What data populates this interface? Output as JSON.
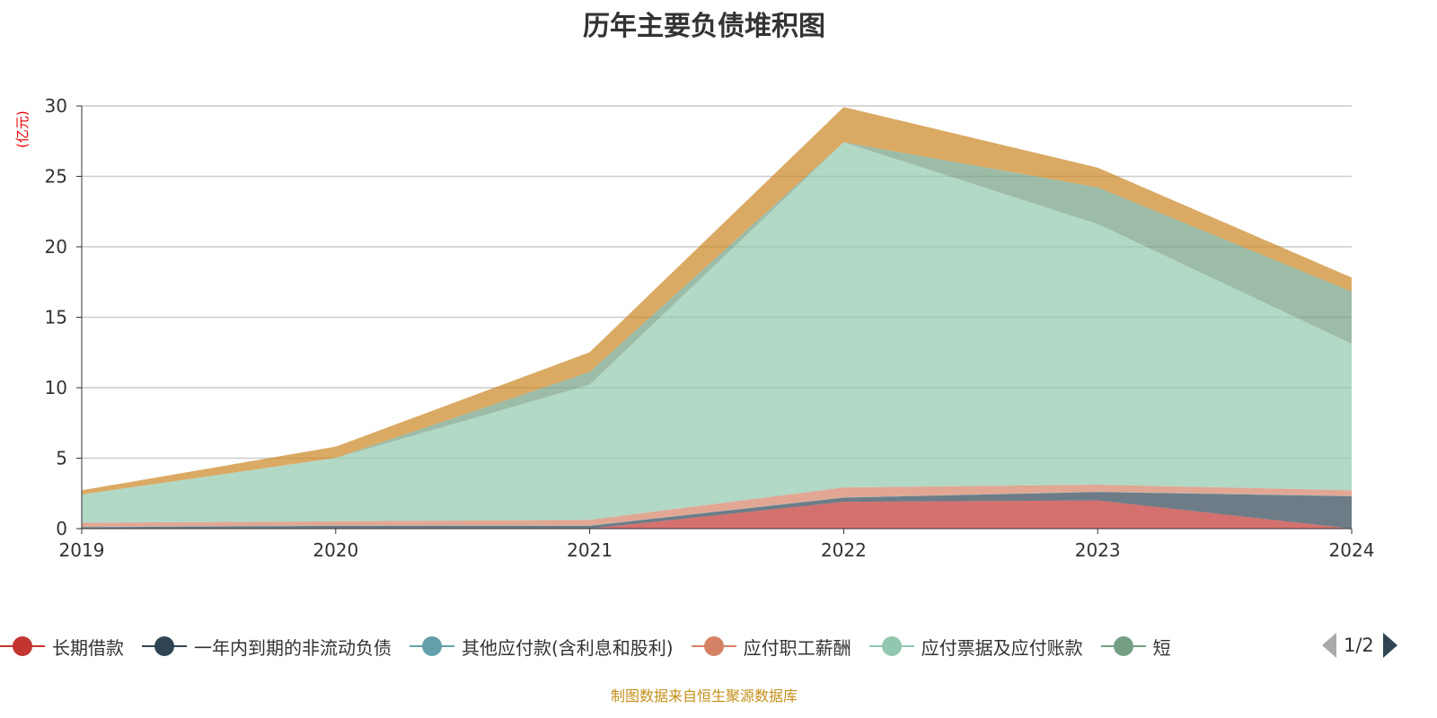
{
  "chart_data": {
    "type": "area",
    "stacked": true,
    "title": "历年主要负债堆积图",
    "ylabel": "(亿元)",
    "categories": [
      "2019",
      "2020",
      "2021",
      "2022",
      "2023",
      "2024"
    ],
    "ylim": [
      0,
      30
    ],
    "yticks": [
      0,
      5,
      10,
      15,
      20,
      25,
      30
    ],
    "grid": true,
    "legend_position": "bottom",
    "series": [
      {
        "name": "长期借款",
        "color": "#c23531",
        "values": [
          0,
          0,
          0,
          1.9,
          2.0,
          0
        ]
      },
      {
        "name": "一年内到期的非流动负债",
        "color": "#2f4554",
        "values": [
          0.1,
          0.2,
          0.2,
          0.3,
          0.6,
          2.3
        ]
      },
      {
        "name": "其他应付款(含利息和股利)",
        "color": "#61a0a8",
        "values": [
          0.02,
          0.02,
          0.02,
          0.02,
          0.02,
          0.02
        ]
      },
      {
        "name": "应付职工薪酬",
        "color": "#d48265",
        "values": [
          0.3,
          0.3,
          0.4,
          0.7,
          0.5,
          0.4
        ]
      },
      {
        "name": "应付票据及应付账款",
        "color": "#91c7ae",
        "values": [
          2.0,
          4.5,
          9.6,
          24.5,
          18.5,
          10.4
        ]
      },
      {
        "name": "短",
        "color": "#749f83",
        "values": [
          0,
          0,
          0.9,
          0,
          2.6,
          3.7
        ]
      },
      {
        "name": "",
        "color": "#ca8622",
        "values": [
          0.3,
          0.8,
          1.4,
          2.5,
          1.4,
          1.0
        ]
      }
    ]
  },
  "legend_pager": "1/2",
  "source": "制图数据来自恒生聚源数据库"
}
